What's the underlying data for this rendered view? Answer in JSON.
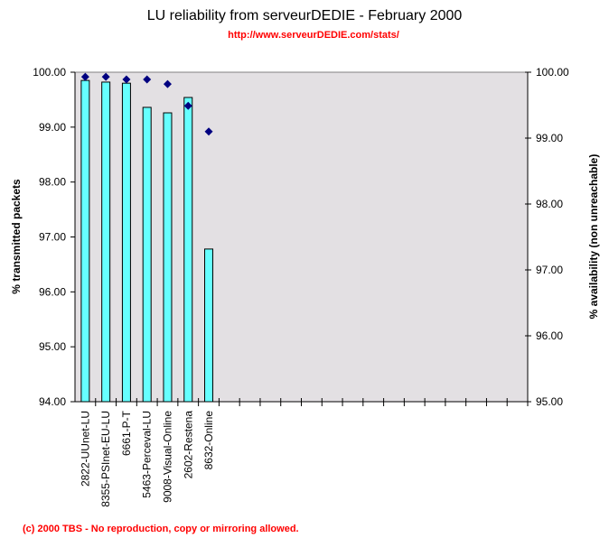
{
  "chart_data": {
    "type": "bar",
    "title": "LU reliability from serveurDEDIE - February 2000",
    "subtitle": "http://www.serveurDEDIE.com/stats/",
    "footer": "(c) 2000 TBS - No reproduction, copy or mirroring allowed.",
    "categories": [
      "2822-UUnet-LU",
      "8355-PSInet-EU-LU",
      "6661-P-T",
      "5463-Perceval-LU",
      "9008-Visual-Online",
      "2602-Restena",
      "8632-Online"
    ],
    "category_slots": 22,
    "ylabel": "%  transmitted packets",
    "y2label": "%  availability (non unreachable)",
    "ylim": [
      94,
      100
    ],
    "y2lim": [
      95,
      100
    ],
    "yticks": [
      "94.00",
      "95.00",
      "96.00",
      "97.00",
      "98.00",
      "99.00",
      "100.00"
    ],
    "y2ticks": [
      "95.00",
      "96.00",
      "97.00",
      "98.00",
      "99.00",
      "100.00"
    ],
    "series": [
      {
        "name": "% transmitted packets",
        "type": "bar",
        "axis": "left",
        "color": "#66ffff",
        "values": [
          99.85,
          99.82,
          99.8,
          99.36,
          99.26,
          99.54,
          96.78
        ]
      },
      {
        "name": "% availability (non unreachable)",
        "type": "scatter",
        "axis": "right",
        "color": "#000080",
        "values": [
          99.93,
          99.93,
          99.89,
          99.89,
          99.82,
          99.49,
          99.1
        ]
      }
    ],
    "plot_background": "#e3e0e3",
    "grid": false
  }
}
